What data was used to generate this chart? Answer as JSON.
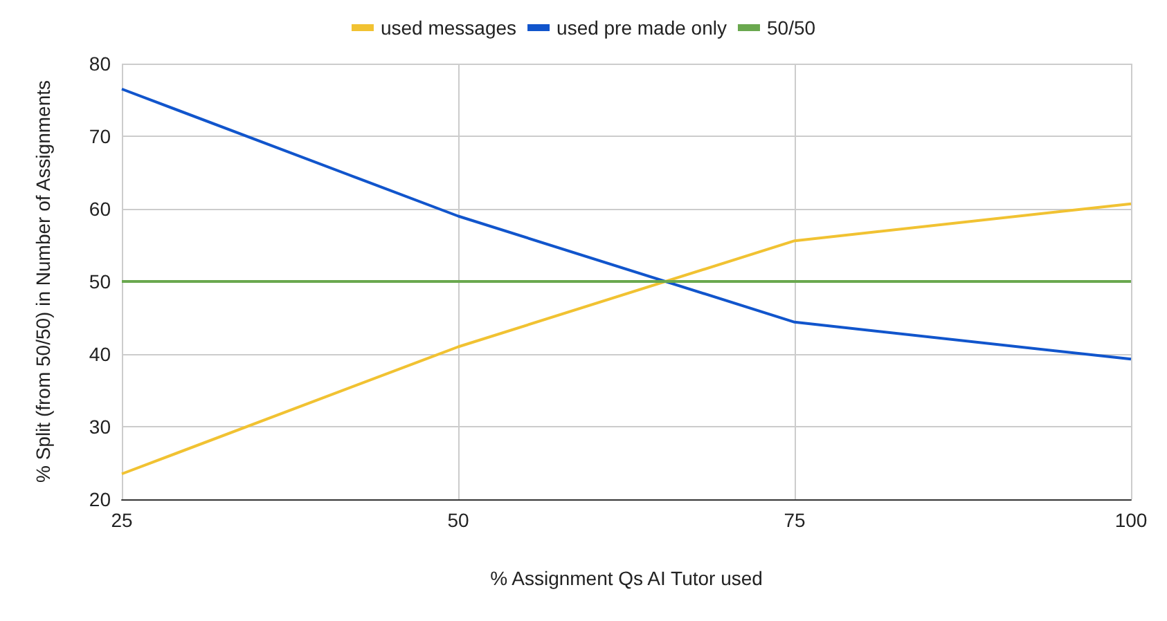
{
  "chart_data": {
    "type": "line",
    "xlabel": "% Assignment Qs AI Tutor used",
    "ylabel": "% Split (from 50/50) in Number of Assignments",
    "x": [
      25,
      50,
      75,
      100
    ],
    "series": [
      {
        "name": "used messages",
        "color": "#f1c232",
        "values": [
          23.5,
          41,
          55.6,
          60.7
        ]
      },
      {
        "name": "used pre made only",
        "color": "#1155cc",
        "values": [
          76.5,
          59,
          44.4,
          39.3
        ]
      },
      {
        "name": "50/50",
        "color": "#6aa84f",
        "values": [
          50,
          50,
          50,
          50
        ]
      }
    ],
    "xlim": [
      25,
      100
    ],
    "xticks": [
      25,
      50,
      75,
      100
    ],
    "ylim": [
      20,
      80
    ],
    "yticks": [
      20,
      30,
      40,
      50,
      60,
      70,
      80
    ],
    "grid": true,
    "legend": "top",
    "marker": "none",
    "line_style": "solid"
  }
}
